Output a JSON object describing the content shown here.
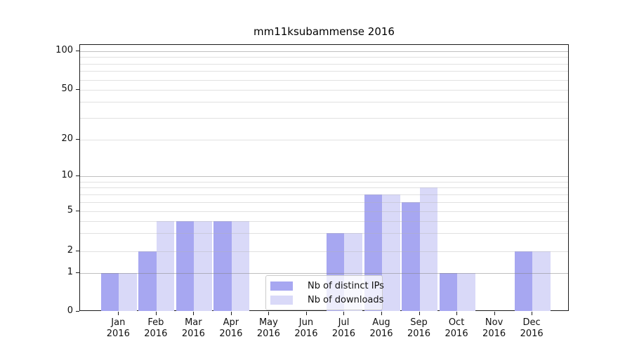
{
  "chart_data": {
    "type": "bar",
    "title": "mm11ksubammense 2016",
    "year_label": "2016",
    "categories": [
      "Jan",
      "Feb",
      "Mar",
      "Apr",
      "May",
      "Jun",
      "Jul",
      "Aug",
      "Sep",
      "Oct",
      "Nov",
      "Dec"
    ],
    "series": [
      {
        "name": "Nb of distinct IPs",
        "color": "#a7a7f1",
        "values": [
          1,
          2,
          4,
          4,
          0,
          0,
          3,
          7,
          6,
          1,
          0,
          2
        ]
      },
      {
        "name": "Nb of downloads",
        "color": "#d9d9f8",
        "values": [
          1,
          4,
          4,
          4,
          0,
          0,
          3,
          7,
          8,
          1,
          0,
          2
        ]
      }
    ],
    "xlabel": "",
    "ylabel": "",
    "y_axis": {
      "scale": "symlog",
      "tick_values": [
        0,
        1,
        2,
        5,
        10,
        20,
        50,
        100
      ],
      "tick_labels": [
        "0",
        "1",
        "2",
        "5",
        "10",
        "20",
        "50",
        "100"
      ],
      "major_gridlines": [
        1,
        10,
        100
      ],
      "minor_gridlines": [
        2,
        3,
        4,
        5,
        6,
        7,
        8,
        9,
        20,
        30,
        40,
        50,
        60,
        70,
        80,
        90
      ],
      "ylim": [
        0,
        110
      ]
    },
    "grid": true,
    "legend_position": "bottom-center",
    "colors": {
      "background": "#ffffff",
      "spine": "#1a1a1a",
      "major_grid": "#c0c0c0",
      "minor_grid": "#e1e1e1",
      "text": "#111111"
    }
  }
}
